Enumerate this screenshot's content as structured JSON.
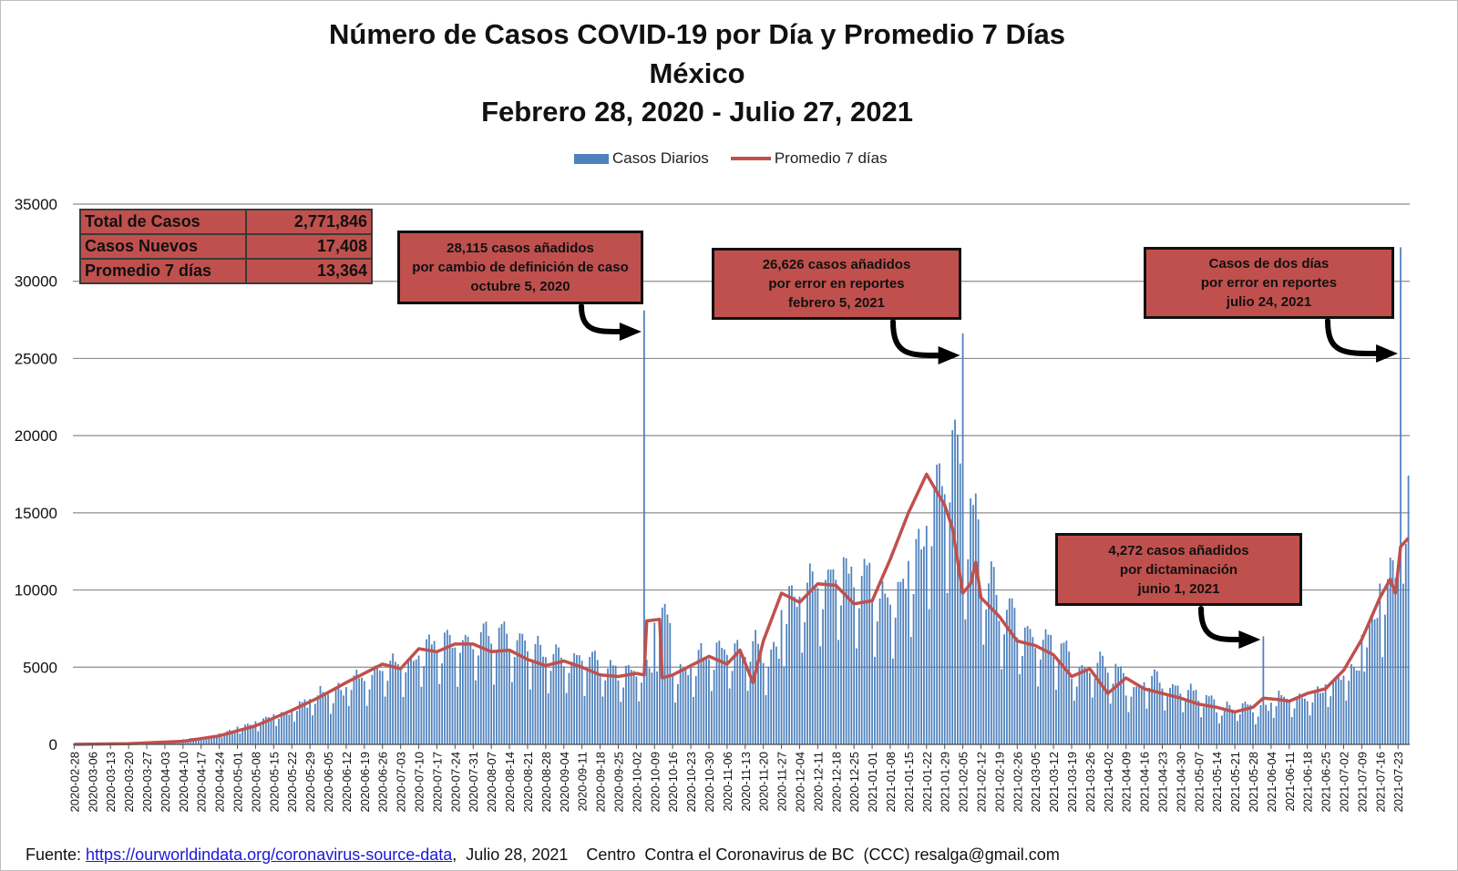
{
  "title_line1": "Número de  Casos  COVID-19 por Día y Promedio 7 Días",
  "title_line2": "México",
  "title_line3": "Febrero 28, 2020 - Julio 27, 2021",
  "legend": {
    "bars": "Casos Diarios",
    "line": "Promedio 7 días"
  },
  "stats": [
    {
      "label": "Total de Casos",
      "value": "2,771,846"
    },
    {
      "label": "Casos Nuevos",
      "value": "17,408"
    },
    {
      "label": "Promedio 7 días",
      "value": "13,364"
    }
  ],
  "annotations": [
    {
      "lines": [
        "28,115 casos  añadidos",
        "por cambio de definición de caso",
        "octubre 5, 2020"
      ]
    },
    {
      "lines": [
        "26,626 casos  añadidos",
        "por error en reportes",
        "febrero  5, 2021"
      ]
    },
    {
      "lines": [
        "Casos de dos días",
        "por error en reportes",
        "julio 24, 2021"
      ]
    },
    {
      "lines": [
        "4,272 casos  añadidos",
        "por dictaminación",
        "junio 1, 2021"
      ]
    }
  ],
  "source": {
    "prefix": "Fuente: ",
    "link": "https://ourworldindata.org/coronavirus-source-data",
    "suffix": ",  Julio 28, 2021    Centro  Contra el Coronavirus de BC  (CCC) resalga@gmail.com"
  },
  "colors": {
    "bars": "#4f81bd",
    "line": "#c0504d",
    "stats_bg": "#c0504d",
    "note_bg": "#c0504d",
    "grid": "#8c8c8c"
  },
  "chart_data": {
    "type": "bar",
    "x_start": "2020-02-28",
    "x_end": "2021-07-27",
    "ylim": [
      0,
      35000
    ],
    "yticks": [
      0,
      5000,
      10000,
      15000,
      20000,
      25000,
      30000,
      35000
    ],
    "xtick_labels": [
      "2020-02-28",
      "2020-03-06",
      "2020-03-13",
      "2020-03-20",
      "2020-03-27",
      "2020-04-03",
      "2020-04-10",
      "2020-04-17",
      "2020-04-24",
      "2020-05-01",
      "2020-05-08",
      "2020-05-15",
      "2020-05-22",
      "2020-05-29",
      "2020-06-05",
      "2020-06-12",
      "2020-06-19",
      "2020-06-26",
      "2020-07-03",
      "2020-07-10",
      "2020-07-17",
      "2020-07-24",
      "2020-07-31",
      "2020-08-07",
      "2020-08-14",
      "2020-08-21",
      "2020-08-28",
      "2020-09-04",
      "2020-09-11",
      "2020-09-18",
      "2020-09-25",
      "2020-10-02",
      "2020-10-09",
      "2020-10-16",
      "2020-10-23",
      "2020-10-30",
      "2020-11-06",
      "2020-11-13",
      "2020-11-20",
      "2020-11-27",
      "2020-12-04",
      "2020-12-11",
      "2020-12-18",
      "2020-12-25",
      "2021-01-01",
      "2021-01-08",
      "2021-01-15",
      "2021-01-22",
      "2021-01-29",
      "2021-02-05",
      "2021-02-12",
      "2021-02-19",
      "2021-02-26",
      "2021-03-05",
      "2021-03-12",
      "2021-03-19",
      "2021-03-26",
      "2021-04-02",
      "2021-04-09",
      "2021-04-16",
      "2021-04-23",
      "2021-04-30",
      "2021-05-07",
      "2021-05-14",
      "2021-05-21",
      "2021-05-28",
      "2021-06-04",
      "2021-06-11",
      "2021-06-18",
      "2021-06-25",
      "2021-07-02",
      "2021-07-09",
      "2021-07-16",
      "2021-07-23"
    ],
    "series": [
      {
        "name": "Casos Diarios",
        "type": "bar",
        "weekly_mean": [
          2,
          10,
          30,
          60,
          120,
          200,
          350,
          450,
          750,
          1150,
          1450,
          1850,
          2400,
          3000,
          3200,
          3900,
          4300,
          5000,
          5100,
          6100,
          6100,
          6400,
          6600,
          6600,
          6100,
          5700,
          5300,
          5100,
          5300,
          4700,
          4300,
          4600,
          7900,
          4400,
          5300,
          5700,
          5500,
          5900,
          5400,
          8600,
          9500,
          10100,
          10300,
          10400,
          9000,
          9300,
          11900,
          15000,
          17000,
          14000,
          9800,
          8300,
          6900,
          6400,
          5700,
          4400,
          4900,
          4500,
          3400,
          4000,
          3400,
          3200,
          2800,
          2200,
          2300,
          2200,
          2900,
          2800,
          3000,
          3800,
          4400,
          7300,
          9800,
          11500
        ],
        "spikes": [
          {
            "date": "2020-10-05",
            "value": 28115
          },
          {
            "date": "2021-02-05",
            "value": 26626
          },
          {
            "date": "2021-06-01",
            "value": 7000
          },
          {
            "date": "2021-07-24",
            "value": 32200
          },
          {
            "date": "2021-07-27",
            "value": 17408
          }
        ]
      },
      {
        "name": "Promedio 7 días",
        "type": "line",
        "points": [
          [
            "2020-02-28",
            0
          ],
          [
            "2020-03-20",
            50
          ],
          [
            "2020-04-10",
            200
          ],
          [
            "2020-04-24",
            550
          ],
          [
            "2020-05-08",
            1200
          ],
          [
            "2020-05-22",
            2200
          ],
          [
            "2020-06-01",
            3000
          ],
          [
            "2020-06-12",
            4000
          ],
          [
            "2020-06-26",
            5200
          ],
          [
            "2020-07-03",
            4900
          ],
          [
            "2020-07-10",
            6200
          ],
          [
            "2020-07-17",
            6000
          ],
          [
            "2020-07-24",
            6500
          ],
          [
            "2020-07-31",
            6500
          ],
          [
            "2020-08-07",
            6000
          ],
          [
            "2020-08-14",
            6100
          ],
          [
            "2020-08-21",
            5500
          ],
          [
            "2020-08-28",
            5100
          ],
          [
            "2020-09-04",
            5400
          ],
          [
            "2020-09-11",
            5000
          ],
          [
            "2020-09-18",
            4500
          ],
          [
            "2020-09-25",
            4400
          ],
          [
            "2020-10-02",
            4600
          ],
          [
            "2020-10-05",
            4500
          ],
          [
            "2020-10-06",
            8000
          ],
          [
            "2020-10-11",
            8100
          ],
          [
            "2020-10-12",
            4300
          ],
          [
            "2020-10-16",
            4500
          ],
          [
            "2020-10-30",
            5700
          ],
          [
            "2020-11-06",
            5200
          ],
          [
            "2020-11-11",
            6100
          ],
          [
            "2020-11-16",
            4000
          ],
          [
            "2020-11-20",
            6700
          ],
          [
            "2020-11-27",
            9800
          ],
          [
            "2020-12-04",
            9200
          ],
          [
            "2020-12-11",
            10400
          ],
          [
            "2020-12-18",
            10300
          ],
          [
            "2020-12-25",
            9100
          ],
          [
            "2021-01-01",
            9300
          ],
          [
            "2021-01-08",
            12000
          ],
          [
            "2021-01-15",
            15000
          ],
          [
            "2021-01-22",
            17500
          ],
          [
            "2021-01-29",
            15500
          ],
          [
            "2021-02-01",
            14000
          ],
          [
            "2021-02-05",
            9800
          ],
          [
            "2021-02-08",
            10400
          ],
          [
            "2021-02-10",
            11800
          ],
          [
            "2021-02-12",
            9500
          ],
          [
            "2021-02-19",
            8300
          ],
          [
            "2021-02-26",
            6700
          ],
          [
            "2021-03-05",
            6400
          ],
          [
            "2021-03-12",
            5800
          ],
          [
            "2021-03-19",
            4400
          ],
          [
            "2021-03-26",
            4900
          ],
          [
            "2021-04-02",
            3300
          ],
          [
            "2021-04-09",
            4300
          ],
          [
            "2021-04-16",
            3600
          ],
          [
            "2021-04-23",
            3300
          ],
          [
            "2021-04-30",
            3000
          ],
          [
            "2021-05-07",
            2600
          ],
          [
            "2021-05-14",
            2400
          ],
          [
            "2021-05-21",
            2100
          ],
          [
            "2021-05-28",
            2400
          ],
          [
            "2021-06-01",
            3000
          ],
          [
            "2021-06-07",
            2900
          ],
          [
            "2021-06-11",
            2800
          ],
          [
            "2021-06-18",
            3300
          ],
          [
            "2021-06-25",
            3600
          ],
          [
            "2021-07-02",
            4800
          ],
          [
            "2021-07-09",
            6800
          ],
          [
            "2021-07-16",
            9500
          ],
          [
            "2021-07-20",
            10700
          ],
          [
            "2021-07-22",
            9800
          ],
          [
            "2021-07-24",
            12800
          ],
          [
            "2021-07-27",
            13364
          ]
        ]
      }
    ]
  }
}
